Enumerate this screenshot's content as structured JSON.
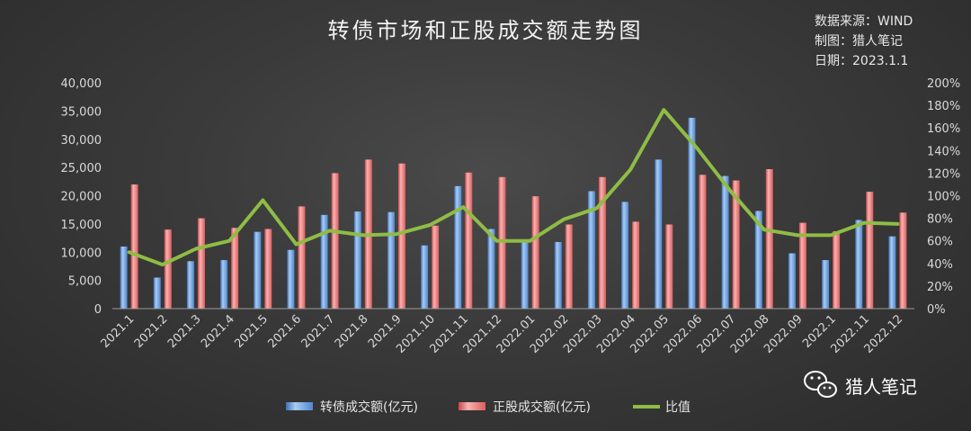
{
  "meta": {
    "source": "数据来源：WIND",
    "author": "制图：猎人笔记",
    "date": "日期：2023.1.1"
  },
  "watermark": "猎人笔记",
  "colors": {
    "bar1": "#5b9bd5",
    "bar2": "#ec6a6a",
    "line": "#8fbc45"
  },
  "chart_data": {
    "type": "bar",
    "title": "转债市场和正股成交额走势图",
    "legend_position": "bottom",
    "grid": false,
    "categories": [
      "2021.1",
      "2021.2",
      "2021.3",
      "2021.4",
      "2021.5",
      "2021.6",
      "2021.7",
      "2021.8",
      "2021.9",
      "2021.10",
      "2021.11",
      "2021.12",
      "2022.01",
      "2022.02",
      "2022.03",
      "2022.04",
      "2022.05",
      "2022.06",
      "2022.07",
      "2022.08",
      "2022.09",
      "2022.1",
      "2022.11",
      "2022.12"
    ],
    "y_left": {
      "min": 0,
      "max": 40000,
      "ticks": [
        "0",
        "5,000",
        "10,000",
        "15,000",
        "20,000",
        "25,000",
        "30,000",
        "35,000",
        "40,000"
      ]
    },
    "y_right": {
      "min": 0,
      "max": 2,
      "ticks": [
        "0%",
        "20%",
        "40%",
        "60%",
        "80%",
        "100%",
        "120%",
        "140%",
        "160%",
        "180%",
        "200%"
      ]
    },
    "series": [
      {
        "name": "转债成交额(亿元)",
        "type": "bar",
        "axis": "left",
        "values": [
          11000,
          5500,
          8400,
          8600,
          13600,
          10400,
          16600,
          17200,
          17100,
          11200,
          21700,
          14100,
          11900,
          11800,
          20800,
          18900,
          26400,
          33800,
          23500,
          17300,
          9800,
          8600,
          15700,
          12800
        ]
      },
      {
        "name": "正股成交额(亿元)",
        "type": "bar",
        "axis": "left",
        "values": [
          22000,
          14000,
          16000,
          14300,
          14100,
          18100,
          24000,
          26400,
          25700,
          14700,
          24100,
          23300,
          19900,
          14900,
          23300,
          15400,
          14900,
          23700,
          22700,
          24700,
          15200,
          13700,
          20700,
          17000
        ]
      },
      {
        "name": "比值",
        "type": "line",
        "axis": "right",
        "values": [
          0.5,
          0.39,
          0.53,
          0.6,
          0.96,
          0.57,
          0.69,
          0.65,
          0.66,
          0.74,
          0.9,
          0.6,
          0.6,
          0.79,
          0.89,
          1.23,
          1.76,
          1.42,
          1.04,
          0.7,
          0.65,
          0.65,
          0.76,
          0.75
        ]
      }
    ]
  }
}
